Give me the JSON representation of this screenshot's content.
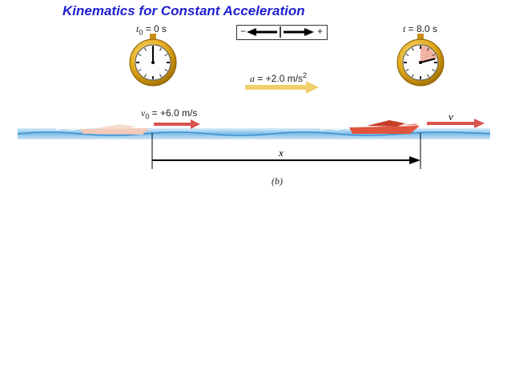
{
  "title": "Kinematics for Constant Acceleration",
  "clock_start": {
    "label_var": "t",
    "label_sub": "0",
    "label_rest": " = 0 s",
    "icon": "stopwatch-icon",
    "elapsed_fraction": 0
  },
  "clock_end": {
    "label_var": "t",
    "label_rest": " = 8.0 s",
    "icon": "stopwatch-icon",
    "elapsed_fraction": 0.25
  },
  "sign_key": {
    "minus": "−",
    "plus": "+"
  },
  "acceleration": {
    "label_var": "a",
    "label_rest": " = +2.0 m/s",
    "label_sup": "2",
    "arrow_color": "#f0cf6a"
  },
  "initial_velocity": {
    "label_var": "v",
    "label_sub": "0",
    "label_rest": " = +6.0 m/s",
    "arrow_color": "#d9534f"
  },
  "final_velocity": {
    "label": "v",
    "arrow_color": "#d9534f"
  },
  "displacement": {
    "label": "x"
  },
  "caption": "(b)",
  "colors": {
    "title": "#1f1fd0",
    "water": "#4f9ed8",
    "boat_faded": "#f3c9b8",
    "boat": "#e0553d",
    "clock_gold": "#e0a81a"
  }
}
